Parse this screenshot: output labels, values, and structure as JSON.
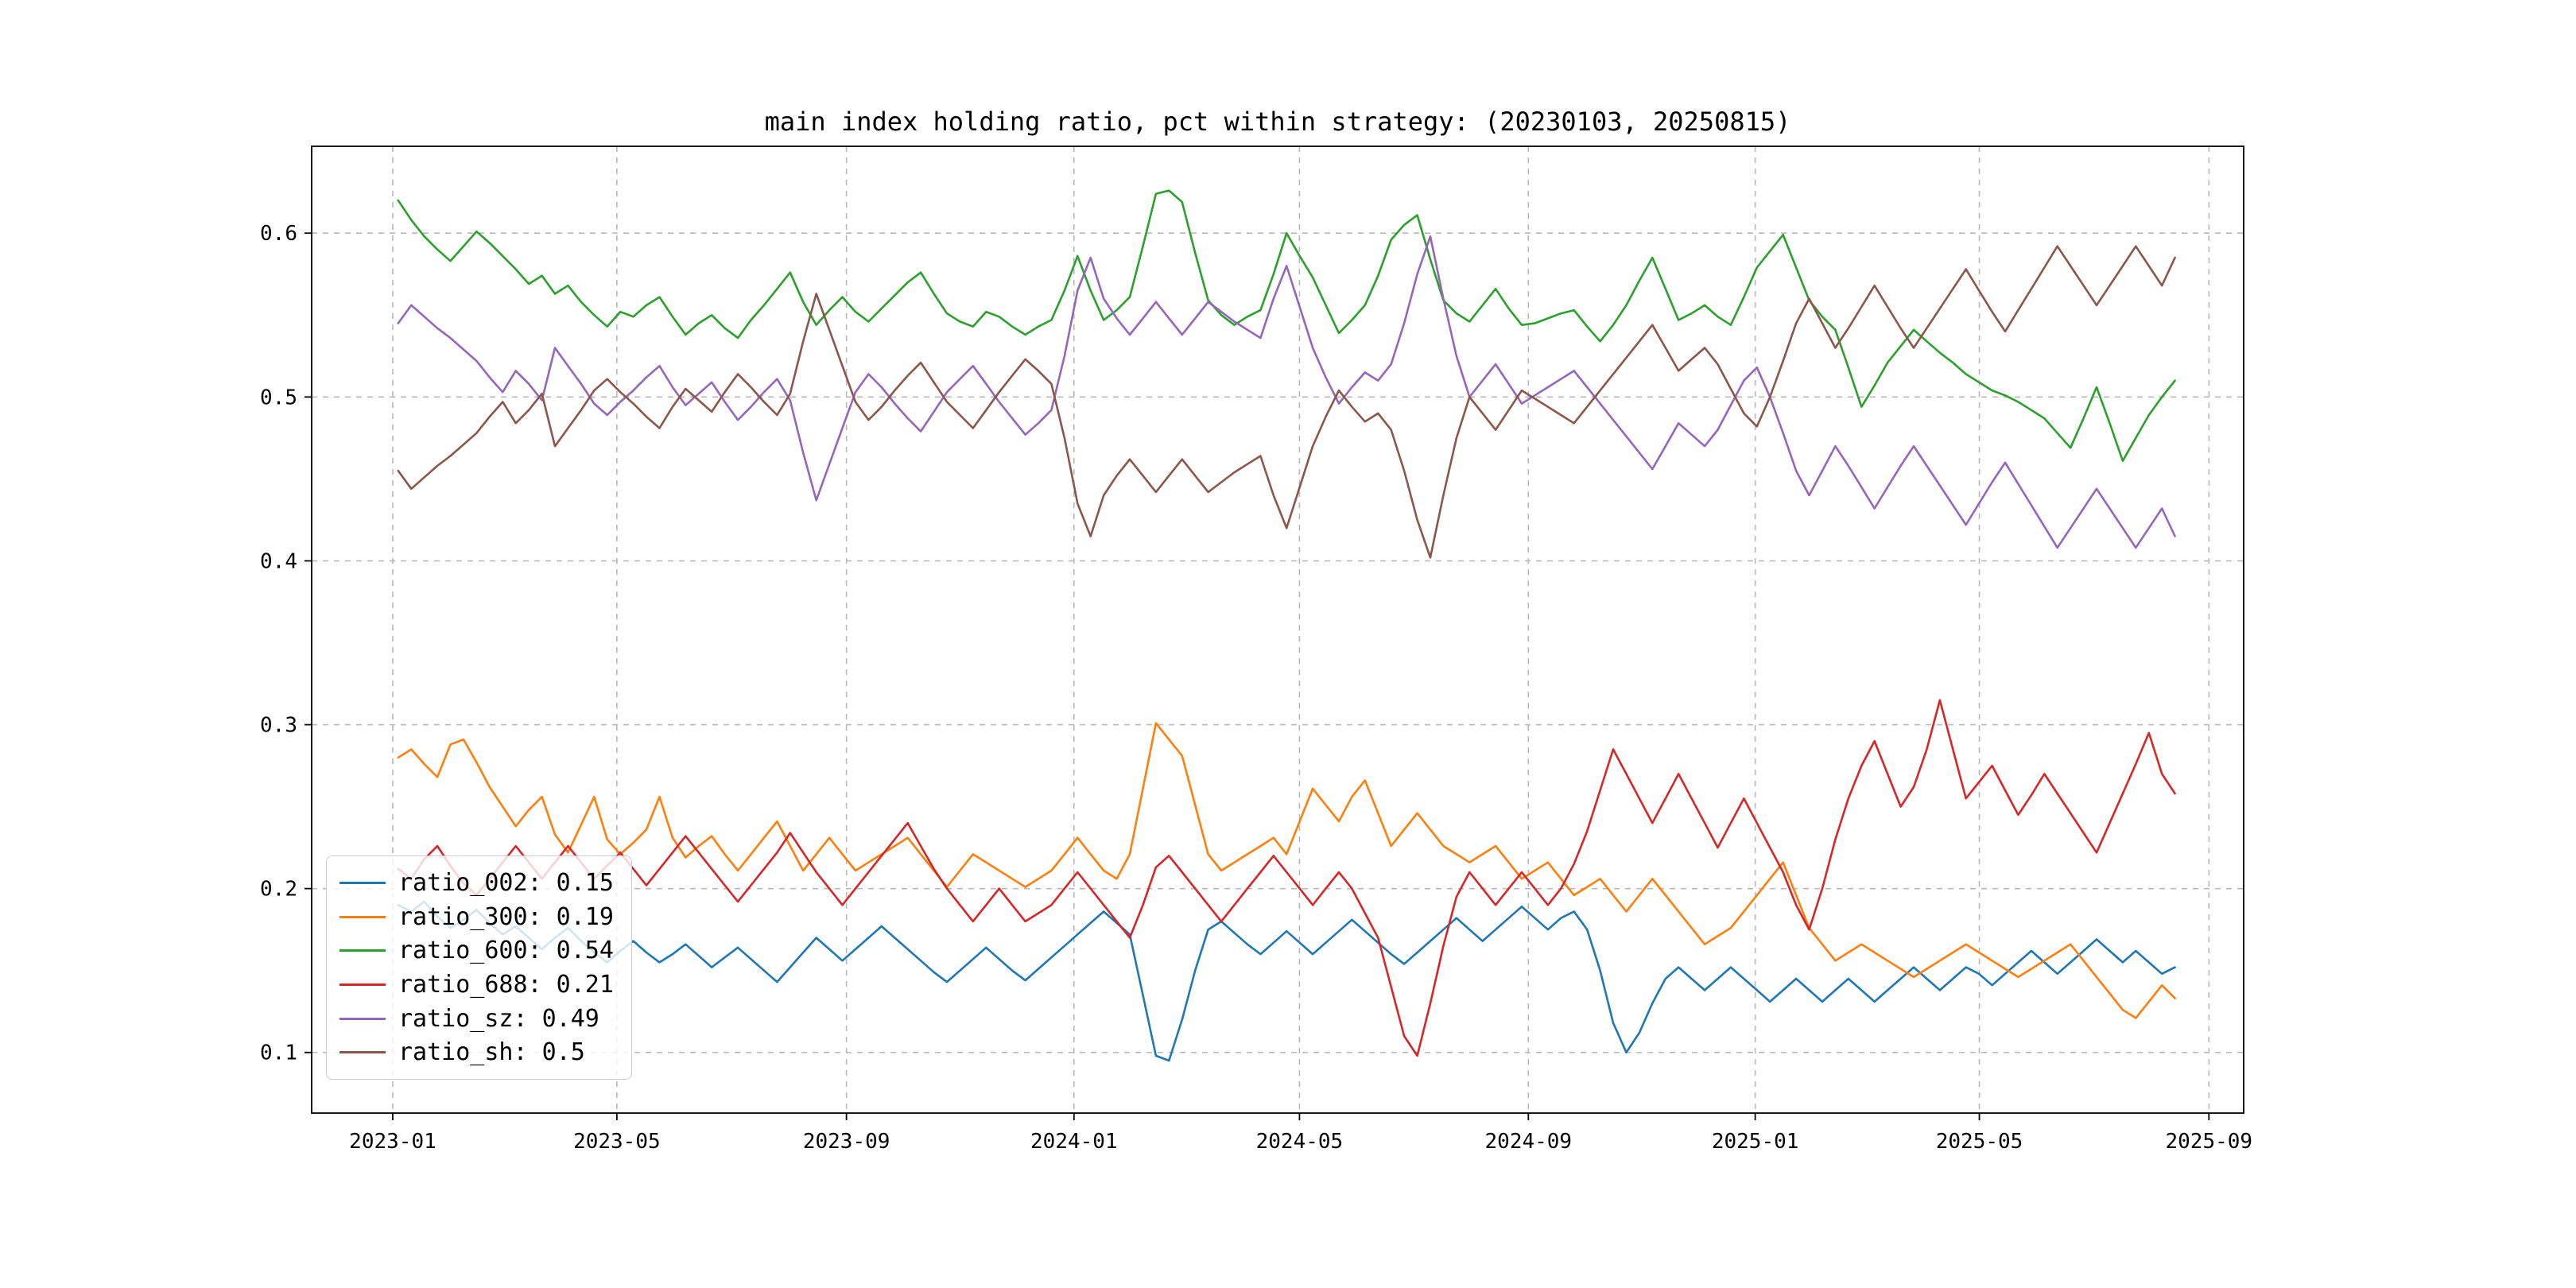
{
  "title": "main index holding ratio, pct within strategy: (20230103, 20250815)",
  "chart_data": {
    "type": "line",
    "title": "main index holding ratio, pct within strategy: (20230103, 20250815)",
    "xlabel": "",
    "ylabel": "",
    "grid": true,
    "legend_position": "lower left",
    "xlim": [
      2022.881,
      2025.717
    ],
    "ylim": [
      0.063,
      0.653
    ],
    "x_start": 2023.008,
    "x_step": 0.019178,
    "n_points": 137,
    "xticks": {
      "labels": [
        "2023-01",
        "2023-05",
        "2023-09",
        "2024-01",
        "2024-05",
        "2024-09",
        "2025-01",
        "2025-05",
        "2025-09"
      ],
      "values": [
        2023.0,
        2023.329,
        2023.666,
        2024.0,
        2024.331,
        2024.667,
        2025.0,
        2025.329,
        2025.666
      ]
    },
    "yticks": {
      "labels": [
        "0.1",
        "0.2",
        "0.3",
        "0.4",
        "0.5",
        "0.6"
      ],
      "values": [
        0.1,
        0.2,
        0.3,
        0.4,
        0.5,
        0.6
      ]
    },
    "series": [
      {
        "name": "ratio_002",
        "legend_label": "ratio_002: 0.15",
        "color": "#1f77b4",
        "values": [
          0.19,
          0.186,
          0.192,
          0.183,
          0.176,
          0.181,
          0.187,
          0.179,
          0.172,
          0.177,
          0.17,
          0.163,
          0.17,
          0.176,
          0.168,
          0.161,
          0.155,
          0.162,
          0.168,
          0.161,
          0.155,
          0.16,
          0.166,
          0.159,
          0.152,
          0.158,
          0.164,
          0.157,
          0.15,
          0.143,
          0.152,
          0.161,
          0.17,
          0.163,
          0.156,
          0.163,
          0.17,
          0.177,
          0.17,
          0.163,
          0.156,
          0.149,
          0.143,
          0.15,
          0.157,
          0.164,
          0.157,
          0.15,
          0.144,
          0.151,
          0.158,
          0.165,
          0.172,
          0.179,
          0.186,
          0.179,
          0.172,
          0.135,
          0.098,
          0.095,
          0.12,
          0.15,
          0.175,
          0.18,
          0.173,
          0.166,
          0.16,
          0.167,
          0.174,
          0.167,
          0.16,
          0.167,
          0.174,
          0.181,
          0.174,
          0.167,
          0.16,
          0.154,
          0.161,
          0.168,
          0.175,
          0.182,
          0.175,
          0.168,
          0.175,
          0.182,
          0.189,
          0.182,
          0.175,
          0.182,
          0.186,
          0.175,
          0.15,
          0.118,
          0.1,
          0.112,
          0.13,
          0.145,
          0.152,
          0.145,
          0.138,
          0.145,
          0.152,
          0.145,
          0.138,
          0.131,
          0.138,
          0.145,
          0.138,
          0.131,
          0.138,
          0.145,
          0.138,
          0.131,
          0.138,
          0.145,
          0.152,
          0.145,
          0.138,
          0.145,
          0.152,
          0.148,
          0.141,
          0.148,
          0.155,
          0.162,
          0.155,
          0.148,
          0.155,
          0.162,
          0.169,
          0.162,
          0.155,
          0.162,
          0.155,
          0.148,
          0.152
        ]
      },
      {
        "name": "ratio_300",
        "legend_label": "ratio_300: 0.19",
        "color": "#ff7f0e",
        "values": [
          0.28,
          0.285,
          0.276,
          0.268,
          0.288,
          0.291,
          0.277,
          0.262,
          0.25,
          0.238,
          0.248,
          0.256,
          0.233,
          0.222,
          0.239,
          0.256,
          0.23,
          0.221,
          0.228,
          0.236,
          0.256,
          0.231,
          0.219,
          0.226,
          0.232,
          0.221,
          0.211,
          0.221,
          0.231,
          0.241,
          0.226,
          0.211,
          0.221,
          0.231,
          0.221,
          0.211,
          0.216,
          0.221,
          0.226,
          0.231,
          0.221,
          0.211,
          0.201,
          0.211,
          0.221,
          0.216,
          0.211,
          0.206,
          0.201,
          0.206,
          0.211,
          0.221,
          0.231,
          0.221,
          0.211,
          0.206,
          0.221,
          0.261,
          0.301,
          0.291,
          0.281,
          0.251,
          0.221,
          0.211,
          0.216,
          0.221,
          0.226,
          0.231,
          0.221,
          0.241,
          0.261,
          0.251,
          0.241,
          0.256,
          0.266,
          0.246,
          0.226,
          0.236,
          0.246,
          0.236,
          0.226,
          0.221,
          0.216,
          0.221,
          0.226,
          0.216,
          0.206,
          0.211,
          0.216,
          0.206,
          0.196,
          0.201,
          0.206,
          0.196,
          0.186,
          0.196,
          0.206,
          0.196,
          0.186,
          0.176,
          0.166,
          0.171,
          0.176,
          0.186,
          0.196,
          0.206,
          0.216,
          0.196,
          0.176,
          0.166,
          0.156,
          0.161,
          0.166,
          0.161,
          0.156,
          0.151,
          0.146,
          0.151,
          0.156,
          0.161,
          0.166,
          0.161,
          0.156,
          0.151,
          0.146,
          0.151,
          0.156,
          0.161,
          0.166,
          0.156,
          0.146,
          0.136,
          0.126,
          0.121,
          0.131,
          0.141,
          0.133
        ]
      },
      {
        "name": "ratio_600",
        "legend_label": "ratio_600: 0.54",
        "color": "#2ca02c",
        "values": [
          0.62,
          0.608,
          0.598,
          0.59,
          0.583,
          0.592,
          0.601,
          0.594,
          0.586,
          0.578,
          0.569,
          0.574,
          0.563,
          0.568,
          0.558,
          0.55,
          0.543,
          0.552,
          0.549,
          0.556,
          0.561,
          0.549,
          0.538,
          0.545,
          0.55,
          0.542,
          0.536,
          0.547,
          0.556,
          0.566,
          0.576,
          0.558,
          0.544,
          0.553,
          0.561,
          0.552,
          0.546,
          0.554,
          0.562,
          0.57,
          0.576,
          0.563,
          0.551,
          0.546,
          0.543,
          0.552,
          0.549,
          0.543,
          0.538,
          0.543,
          0.547,
          0.565,
          0.586,
          0.565,
          0.547,
          0.553,
          0.561,
          0.592,
          0.624,
          0.626,
          0.619,
          0.588,
          0.559,
          0.55,
          0.544,
          0.549,
          0.553,
          0.575,
          0.6,
          0.586,
          0.573,
          0.556,
          0.539,
          0.547,
          0.556,
          0.574,
          0.596,
          0.605,
          0.611,
          0.584,
          0.559,
          0.551,
          0.546,
          0.556,
          0.566,
          0.554,
          0.544,
          0.545,
          0.548,
          0.551,
          0.553,
          0.543,
          0.534,
          0.544,
          0.556,
          0.571,
          0.585,
          0.566,
          0.547,
          0.551,
          0.556,
          0.549,
          0.544,
          0.561,
          0.579,
          0.589,
          0.599,
          0.579,
          0.559,
          0.549,
          0.541,
          0.518,
          0.494,
          0.507,
          0.521,
          0.531,
          0.541,
          0.534,
          0.527,
          0.521,
          0.514,
          0.509,
          0.504,
          0.501,
          0.497,
          0.492,
          0.487,
          0.478,
          0.469,
          0.487,
          0.506,
          0.484,
          0.461,
          0.475,
          0.489,
          0.5,
          0.51
        ]
      },
      {
        "name": "ratio_688",
        "legend_label": "ratio_688: 0.21",
        "color": "#d62728",
        "values": [
          0.212,
          0.206,
          0.218,
          0.226,
          0.214,
          0.203,
          0.196,
          0.206,
          0.216,
          0.226,
          0.216,
          0.206,
          0.216,
          0.226,
          0.216,
          0.206,
          0.214,
          0.222,
          0.212,
          0.202,
          0.212,
          0.222,
          0.232,
          0.222,
          0.212,
          0.202,
          0.192,
          0.202,
          0.212,
          0.222,
          0.234,
          0.222,
          0.21,
          0.2,
          0.19,
          0.2,
          0.21,
          0.22,
          0.23,
          0.24,
          0.226,
          0.212,
          0.2,
          0.19,
          0.18,
          0.19,
          0.2,
          0.19,
          0.18,
          0.185,
          0.19,
          0.2,
          0.21,
          0.2,
          0.19,
          0.18,
          0.17,
          0.19,
          0.213,
          0.22,
          0.21,
          0.2,
          0.19,
          0.18,
          0.19,
          0.2,
          0.21,
          0.22,
          0.21,
          0.2,
          0.19,
          0.2,
          0.21,
          0.2,
          0.185,
          0.17,
          0.14,
          0.11,
          0.098,
          0.13,
          0.165,
          0.195,
          0.21,
          0.2,
          0.19,
          0.2,
          0.21,
          0.2,
          0.19,
          0.2,
          0.215,
          0.235,
          0.26,
          0.285,
          0.27,
          0.255,
          0.24,
          0.255,
          0.27,
          0.255,
          0.24,
          0.225,
          0.24,
          0.255,
          0.24,
          0.225,
          0.21,
          0.19,
          0.175,
          0.2,
          0.23,
          0.255,
          0.275,
          0.29,
          0.27,
          0.25,
          0.262,
          0.285,
          0.315,
          0.285,
          0.255,
          0.265,
          0.275,
          0.26,
          0.245,
          0.257,
          0.27,
          0.258,
          0.246,
          0.234,
          0.222,
          0.24,
          0.258,
          0.276,
          0.295,
          0.27,
          0.258
        ]
      },
      {
        "name": "ratio_sz",
        "legend_label": "ratio_sz: 0.49",
        "color": "#9467bd",
        "values": [
          0.545,
          0.556,
          0.549,
          0.542,
          0.536,
          0.529,
          0.522,
          0.512,
          0.503,
          0.516,
          0.508,
          0.498,
          0.53,
          0.519,
          0.508,
          0.496,
          0.489,
          0.497,
          0.504,
          0.512,
          0.519,
          0.506,
          0.495,
          0.502,
          0.509,
          0.497,
          0.486,
          0.494,
          0.503,
          0.511,
          0.498,
          0.466,
          0.437,
          0.459,
          0.481,
          0.503,
          0.514,
          0.506,
          0.496,
          0.487,
          0.479,
          0.491,
          0.503,
          0.511,
          0.519,
          0.508,
          0.497,
          0.487,
          0.477,
          0.484,
          0.492,
          0.525,
          0.565,
          0.585,
          0.56,
          0.548,
          0.538,
          0.548,
          0.558,
          0.548,
          0.538,
          0.548,
          0.558,
          0.552,
          0.546,
          0.541,
          0.536,
          0.56,
          0.58,
          0.555,
          0.53,
          0.512,
          0.496,
          0.506,
          0.515,
          0.51,
          0.52,
          0.545,
          0.575,
          0.598,
          0.56,
          0.525,
          0.5,
          0.51,
          0.52,
          0.508,
          0.496,
          0.501,
          0.506,
          0.511,
          0.516,
          0.506,
          0.496,
          0.486,
          0.476,
          0.466,
          0.456,
          0.47,
          0.484,
          0.477,
          0.47,
          0.48,
          0.495,
          0.51,
          0.518,
          0.5,
          0.478,
          0.455,
          0.44,
          0.455,
          0.47,
          0.458,
          0.445,
          0.432,
          0.445,
          0.458,
          0.47,
          0.458,
          0.446,
          0.434,
          0.422,
          0.435,
          0.448,
          0.46,
          0.447,
          0.434,
          0.421,
          0.408,
          0.42,
          0.432,
          0.444,
          0.432,
          0.42,
          0.408,
          0.42,
          0.432,
          0.415
        ]
      },
      {
        "name": "ratio_sh",
        "legend_label": "ratio_sh: 0.5",
        "color": "#8c564b",
        "values": [
          0.455,
          0.444,
          0.451,
          0.458,
          0.464,
          0.471,
          0.478,
          0.488,
          0.497,
          0.484,
          0.492,
          0.502,
          0.47,
          0.481,
          0.492,
          0.504,
          0.511,
          0.503,
          0.496,
          0.488,
          0.481,
          0.494,
          0.505,
          0.498,
          0.491,
          0.503,
          0.514,
          0.506,
          0.497,
          0.489,
          0.502,
          0.534,
          0.563,
          0.541,
          0.519,
          0.497,
          0.486,
          0.494,
          0.504,
          0.513,
          0.521,
          0.509,
          0.497,
          0.489,
          0.481,
          0.492,
          0.503,
          0.513,
          0.523,
          0.516,
          0.508,
          0.475,
          0.435,
          0.415,
          0.44,
          0.452,
          0.462,
          0.452,
          0.442,
          0.452,
          0.462,
          0.452,
          0.442,
          0.448,
          0.454,
          0.459,
          0.464,
          0.44,
          0.42,
          0.445,
          0.47,
          0.488,
          0.504,
          0.494,
          0.485,
          0.49,
          0.48,
          0.455,
          0.425,
          0.402,
          0.44,
          0.475,
          0.5,
          0.49,
          0.48,
          0.492,
          0.504,
          0.499,
          0.494,
          0.489,
          0.484,
          0.494,
          0.504,
          0.514,
          0.524,
          0.534,
          0.544,
          0.53,
          0.516,
          0.523,
          0.53,
          0.52,
          0.505,
          0.49,
          0.482,
          0.5,
          0.522,
          0.545,
          0.56,
          0.545,
          0.53,
          0.542,
          0.555,
          0.568,
          0.555,
          0.542,
          0.53,
          0.542,
          0.554,
          0.566,
          0.578,
          0.565,
          0.552,
          0.54,
          0.553,
          0.566,
          0.579,
          0.592,
          0.58,
          0.568,
          0.556,
          0.568,
          0.58,
          0.592,
          0.58,
          0.568,
          0.585
        ]
      }
    ]
  }
}
